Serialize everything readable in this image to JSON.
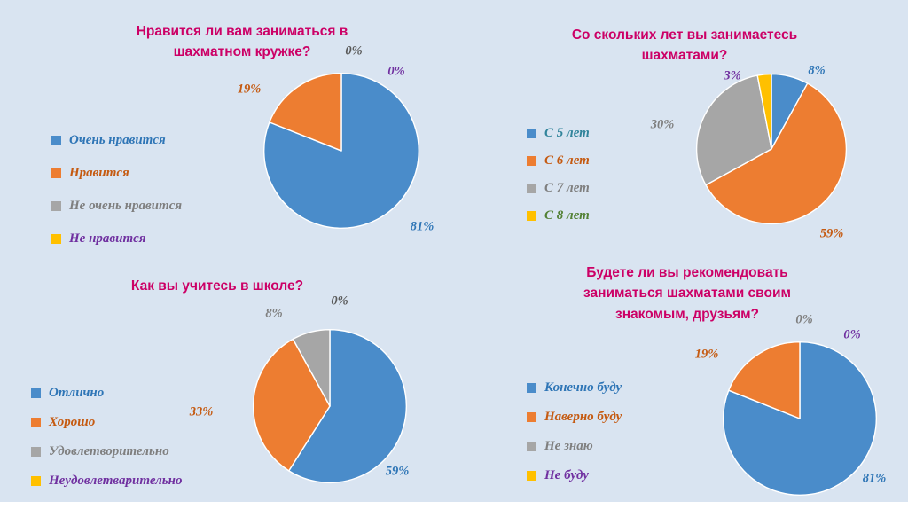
{
  "slide": {
    "background_color": "#d9e4f1",
    "footer_strip_color": "#ffffff"
  },
  "theme": {
    "title_color": "#cc0066",
    "slice_palette": [
      "#4a8cca",
      "#ed7d31",
      "#a6a6a6",
      "#ffc000"
    ]
  },
  "chart_data": [
    {
      "type": "pie",
      "title": "Нравится ли вам заниматься в\nшахматном кружке?",
      "categories": [
        "Очень нравится",
        "Нравится",
        "Не очень нравится",
        "Не нравится"
      ],
      "values": [
        81,
        19,
        0,
        0
      ],
      "unit": "%",
      "slice_colors": [
        "#4a8cca",
        "#ed7d31",
        "#a6a6a6",
        "#ffc000"
      ],
      "legend_text_colors": [
        "#2e75b6",
        "#c55a11",
        "#7f7f7f",
        "#7030a0"
      ],
      "data_labels": [
        {
          "text": "81%",
          "color": "#2e75b6"
        },
        {
          "text": "19%",
          "color": "#c55a11"
        },
        {
          "text": "0%",
          "color": "#595959"
        },
        {
          "text": "0%",
          "color": "#7030a0"
        }
      ],
      "legend_position": "left",
      "start_angle_deg": 0,
      "direction": "clockwise"
    },
    {
      "type": "pie",
      "title": "Со скольких лет вы занимаетесь\nшахматами?",
      "categories": [
        "С 5 лет",
        "С 6 лет",
        "С 7 лет",
        "С 8 лет"
      ],
      "values": [
        8,
        59,
        30,
        3
      ],
      "unit": "%",
      "slice_colors": [
        "#4a8cca",
        "#ed7d31",
        "#a6a6a6",
        "#ffc000"
      ],
      "legend_text_colors": [
        "#31849b",
        "#c55a11",
        "#7f7f7f",
        "#538135"
      ],
      "data_labels": [
        {
          "text": "8%",
          "color": "#2e75b6"
        },
        {
          "text": "59%",
          "color": "#c55a11"
        },
        {
          "text": "30%",
          "color": "#7f7f7f"
        },
        {
          "text": "3%",
          "color": "#7030a0"
        }
      ],
      "legend_position": "left",
      "start_angle_deg": 0,
      "direction": "clockwise"
    },
    {
      "type": "pie",
      "title": "Как вы учитесь в школе?",
      "categories": [
        "Отлично",
        "Хорошо",
        "Удовлетворительно",
        "Неудовлетварительно"
      ],
      "values": [
        59,
        33,
        8,
        0
      ],
      "unit": "%",
      "slice_colors": [
        "#4a8cca",
        "#ed7d31",
        "#a6a6a6",
        "#ffc000"
      ],
      "legend_text_colors": [
        "#2e75b6",
        "#c55a11",
        "#7f7f7f",
        "#7030a0"
      ],
      "data_labels": [
        {
          "text": "59%",
          "color": "#2e75b6"
        },
        {
          "text": "33%",
          "color": "#c55a11"
        },
        {
          "text": "8%",
          "color": "#7f7f7f"
        },
        {
          "text": "0%",
          "color": "#595959"
        }
      ],
      "legend_position": "left",
      "start_angle_deg": 0,
      "direction": "clockwise"
    },
    {
      "type": "pie",
      "title": "Будете ли вы рекомендовать\nзаниматься шахматами своим\nзнакомым, друзьям?",
      "categories": [
        "Конечно буду",
        "Наверно буду",
        "Не знаю",
        "Не буду"
      ],
      "values": [
        81,
        19,
        0,
        0
      ],
      "unit": "%",
      "slice_colors": [
        "#4a8cca",
        "#ed7d31",
        "#a6a6a6",
        "#ffc000"
      ],
      "legend_text_colors": [
        "#2e75b6",
        "#c55a11",
        "#7f7f7f",
        "#7030a0"
      ],
      "data_labels": [
        {
          "text": "81%",
          "color": "#2e75b6"
        },
        {
          "text": "19%",
          "color": "#c55a11"
        },
        {
          "text": "0%",
          "color": "#7f7f7f"
        },
        {
          "text": "0%",
          "color": "#7030a0"
        }
      ],
      "legend_position": "left",
      "start_angle_deg": 0,
      "direction": "clockwise"
    }
  ]
}
